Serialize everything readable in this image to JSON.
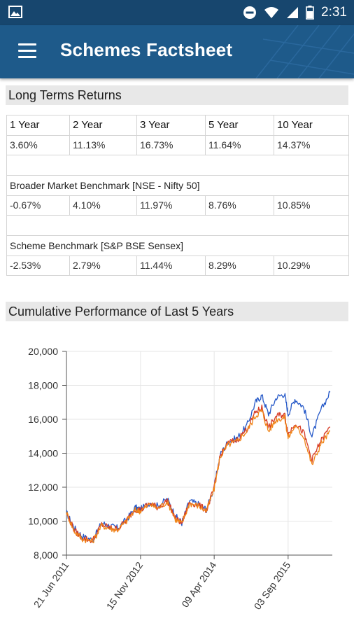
{
  "status_bar": {
    "time": "2:31",
    "icons": [
      "gallery-icon",
      "do-not-disturb-icon",
      "wifi-icon",
      "signal-icon",
      "battery-icon"
    ]
  },
  "app_bar": {
    "title": "Schemes Factsheet",
    "menu_icon": "hamburger-menu-icon"
  },
  "long_term_returns": {
    "heading": "Long Terms Returns",
    "periods": [
      "1 Year",
      "2 Year",
      "3 Year",
      "5 Year",
      "10 Year"
    ],
    "scheme_returns": [
      "3.60%",
      "11.13%",
      "16.73%",
      "11.64%",
      "14.37%"
    ],
    "broader_benchmark": {
      "label": "Broader Market Benchmark [NSE - Nifty 50]",
      "returns": [
        "-0.67%",
        "4.10%",
        "11.97%",
        "8.76%",
        "10.85%"
      ]
    },
    "scheme_benchmark": {
      "label": "Scheme Benchmark [S&P BSE Sensex]",
      "returns": [
        "-2.53%",
        "2.79%",
        "11.44%",
        "8.29%",
        "10.29%"
      ]
    }
  },
  "cumulative": {
    "heading": "Cumulative Performance of Last 5 Years"
  },
  "chart_data": {
    "type": "line",
    "title": "",
    "xlabel": "",
    "ylabel": "",
    "ylim": [
      8000,
      20000
    ],
    "y_ticks": [
      "8,000",
      "10,000",
      "12,000",
      "14,000",
      "16,000",
      "18,000",
      "20,000"
    ],
    "x_tick_labels": [
      "21 Jun 2011",
      "15 Nov 2012",
      "09 Apr 2014",
      "03 Sep 2015"
    ],
    "grid": true,
    "x_dates": [
      "2011-06-21",
      "2011-08-15",
      "2011-10-10",
      "2011-12-20",
      "2012-02-20",
      "2012-04-20",
      "2012-06-10",
      "2012-08-10",
      "2012-10-10",
      "2012-11-15",
      "2013-01-20",
      "2013-03-15",
      "2013-05-20",
      "2013-07-15",
      "2013-08-28",
      "2013-10-20",
      "2013-12-20",
      "2014-02-15",
      "2014-04-09",
      "2014-05-20",
      "2014-07-15",
      "2014-09-15",
      "2014-11-20",
      "2015-01-20",
      "2015-03-05",
      "2015-04-20",
      "2015-06-15",
      "2015-08-10",
      "2015-09-03",
      "2015-10-20",
      "2015-12-20",
      "2016-02-15",
      "2016-04-15",
      "2016-06-20"
    ],
    "series": [
      {
        "name": "",
        "color": "#2659c8",
        "values": [
          10500,
          9600,
          9100,
          8900,
          9900,
          9700,
          9600,
          10100,
          10800,
          10700,
          11100,
          10900,
          11300,
          10300,
          9900,
          11200,
          11000,
          10700,
          12000,
          13900,
          14700,
          14900,
          15600,
          17000,
          17400,
          16300,
          17300,
          17500,
          16300,
          17200,
          16700,
          15000,
          16500,
          17600
        ]
      },
      {
        "name": "",
        "color": "#f0861a",
        "values": [
          10500,
          9400,
          8950,
          8800,
          9750,
          9550,
          9500,
          10000,
          10650,
          10600,
          11000,
          10750,
          11150,
          10100,
          9850,
          11050,
          10900,
          10600,
          11900,
          13800,
          14500,
          14700,
          15300,
          16200,
          16500,
          15300,
          16000,
          16100,
          14900,
          15600,
          15000,
          13300,
          14500,
          15300
        ]
      },
      {
        "name": "",
        "color": "#d63a24",
        "values": [
          10500,
          9450,
          9000,
          8850,
          9800,
          9600,
          9550,
          10050,
          10700,
          10650,
          11050,
          10800,
          11200,
          10150,
          9880,
          11100,
          10950,
          10650,
          11950,
          13850,
          14600,
          14800,
          15400,
          16400,
          16700,
          15500,
          16200,
          16300,
          15100,
          15800,
          15200,
          13600,
          14700,
          15550
        ]
      }
    ]
  }
}
